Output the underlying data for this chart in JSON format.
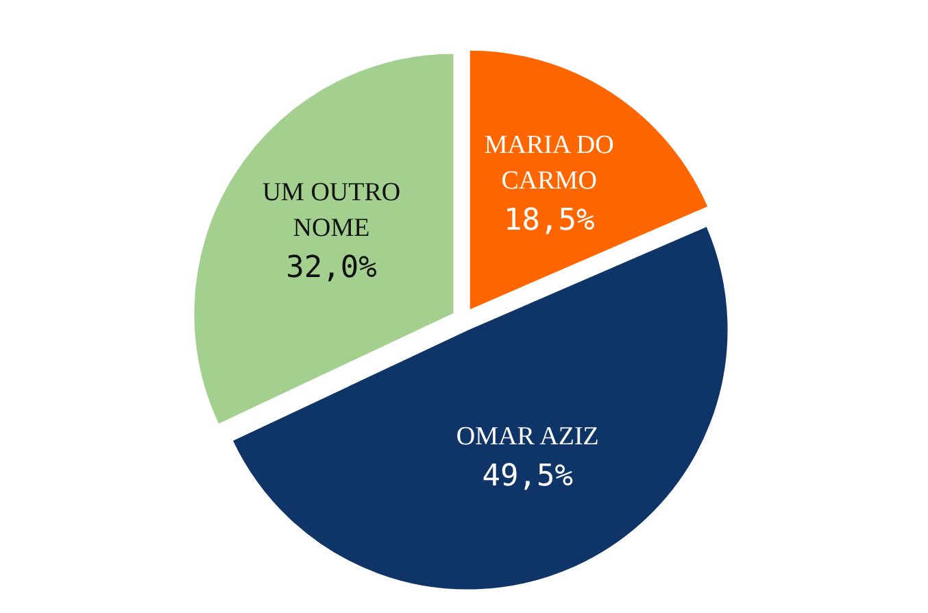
{
  "chart_data": {
    "type": "pie",
    "categories": [
      "MARIA DO CARMO",
      "OMAR AZIZ",
      "UM OUTRO NOME"
    ],
    "values": [
      18.5,
      49.5,
      32.0
    ],
    "colors": [
      "#ff6600",
      "#0e3468",
      "#a3d08f"
    ],
    "value_labels": [
      "18,5%",
      "49,5%",
      "32,0%"
    ],
    "legend": false
  }
}
